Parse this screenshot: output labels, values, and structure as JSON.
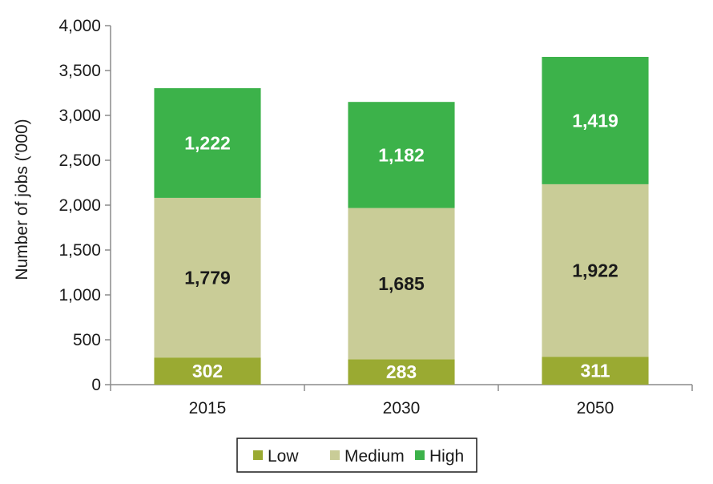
{
  "chart_data": {
    "type": "bar",
    "stacked": true,
    "categories": [
      "2015",
      "2030",
      "2050"
    ],
    "series": [
      {
        "name": "Low",
        "values": [
          302,
          283,
          311
        ],
        "color": "#9aaa32",
        "label_color": "#ffffff"
      },
      {
        "name": "Medium",
        "values": [
          1779,
          1685,
          1922
        ],
        "color": "#c9cc97",
        "label_color": "#1a1a1a"
      },
      {
        "name": "High",
        "values": [
          1222,
          1182,
          1419
        ],
        "color": "#3cb24a",
        "label_color": "#ffffff"
      }
    ],
    "data_labels": [
      [
        "302",
        "283",
        "311"
      ],
      [
        "1,779",
        "1,685",
        "1,922"
      ],
      [
        "1,222",
        "1,182",
        "1,419"
      ]
    ],
    "ylabel": "Number of jobs ('000)",
    "ylim": [
      0,
      4000
    ],
    "yticks": [
      0,
      500,
      1000,
      1500,
      2000,
      2500,
      3000,
      3500,
      4000
    ],
    "ytick_labels": [
      "0",
      "500",
      "1,000",
      "1,500",
      "2,000",
      "2,500",
      "3,000",
      "3,500",
      "4,000"
    ],
    "grid": false,
    "legend_position": "bottom"
  }
}
